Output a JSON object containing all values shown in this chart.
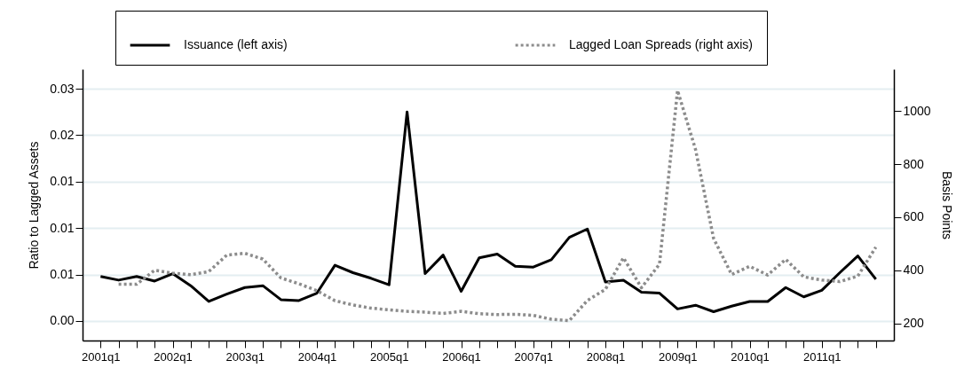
{
  "chart_data": {
    "type": "line",
    "ylabel": "Ratio to Lagged Assets",
    "y2label": "Basis Points",
    "categories": [
      "2001q1",
      null,
      null,
      null,
      "2002q1",
      null,
      null,
      null,
      "2003q1",
      null,
      null,
      null,
      "2004q1",
      null,
      null,
      null,
      "2005q1",
      null,
      null,
      null,
      "2006q1",
      null,
      null,
      null,
      "2007q1",
      null,
      null,
      null,
      "2008q1",
      null,
      null,
      null,
      "2009q1",
      null,
      null,
      null,
      "2010q1",
      null,
      null,
      null,
      "2011q1",
      null,
      null,
      null
    ],
    "series": [
      {
        "name": "Issuance (left axis)",
        "color": "#000000",
        "line_style": "solid",
        "values": [
          0.0048,
          0.0044,
          0.0048,
          0.0043,
          0.0051,
          0.0038,
          0.0021,
          0.0029,
          0.0036,
          0.0038,
          0.0023,
          0.0022,
          0.003,
          0.006,
          0.0052,
          0.0046,
          0.0039,
          0.0225,
          0.0051,
          0.0071,
          0.0032,
          0.0068,
          0.0072,
          0.0059,
          0.0058,
          0.0066,
          0.009,
          0.0099,
          0.0042,
          0.0044,
          0.0031,
          0.003,
          0.0013,
          0.0017,
          0.001,
          0.0016,
          0.0021,
          0.0021,
          0.0036,
          0.0026,
          0.0033,
          0.0052,
          0.007,
          0.0045
        ]
      },
      {
        "name": "Lagged Loan Spreads (right axis)",
        "color": "#8c8c8c",
        "line_style": "dotted",
        "axis": "y2",
        "values": [
          null,
          347,
          347,
          400,
          389,
          383,
          395,
          457,
          464,
          442,
          371,
          349,
          323,
          285,
          269,
          257,
          251,
          245,
          242,
          237,
          245,
          236,
          233,
          234,
          230,
          215,
          210,
          286,
          328,
          447,
          334,
          423,
          1078,
          855,
          520,
          384,
          415,
          382,
          441,
          375,
          363,
          357,
          378,
          487
        ]
      }
    ],
    "ylim": [
      -0.0021,
      0.0271
    ],
    "yticks": [
      {
        "value": 0,
        "label": "0.00"
      },
      {
        "value": 0.005,
        "label": "0.01"
      },
      {
        "value": 0.01,
        "label": "0.01"
      },
      {
        "value": 0.015,
        "label": "0.01"
      },
      {
        "value": 0.02,
        "label": "0.02"
      },
      {
        "value": 0.025,
        "label": "0.03"
      }
    ],
    "y2lim": [
      135,
      1158
    ],
    "y2ticks": [
      200,
      400,
      600,
      800,
      1000
    ],
    "grid": "y",
    "legend": "top",
    "marker": "none"
  }
}
